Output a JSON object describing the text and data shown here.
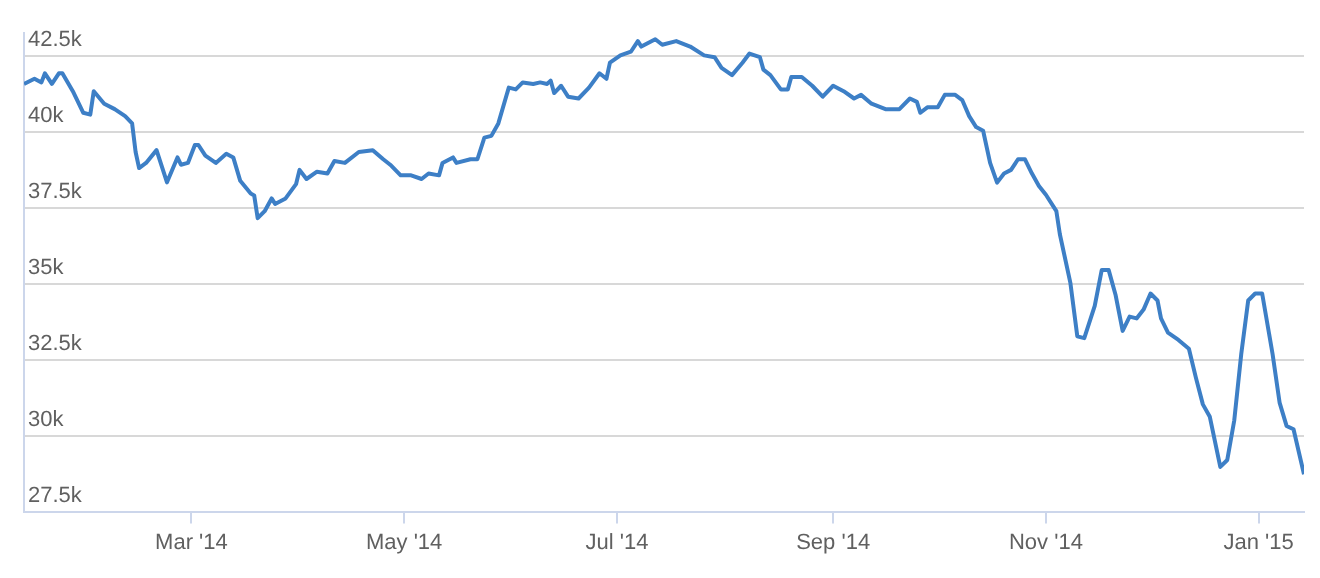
{
  "chart_data": {
    "type": "line",
    "x": [
      "2014-01-12",
      "2014-01-15",
      "2014-01-17",
      "2014-01-18",
      "2014-01-20",
      "2014-01-22",
      "2014-01-23",
      "2014-01-26",
      "2014-01-29",
      "2014-01-31",
      "2014-02-01",
      "2014-02-04",
      "2014-02-07",
      "2014-02-10",
      "2014-02-12",
      "2014-02-13",
      "2014-02-14",
      "2014-02-16",
      "2014-02-19",
      "2014-02-22",
      "2014-02-25",
      "2014-02-26",
      "2014-02-28",
      "2014-03-02",
      "2014-03-03",
      "2014-03-05",
      "2014-03-08",
      "2014-03-11",
      "2014-03-13",
      "2014-03-15",
      "2014-03-18",
      "2014-03-19",
      "2014-03-20",
      "2014-03-22",
      "2014-03-24",
      "2014-03-25",
      "2014-03-28",
      "2014-03-31",
      "2014-04-01",
      "2014-04-03",
      "2014-04-06",
      "2014-04-09",
      "2014-04-11",
      "2014-04-14",
      "2014-04-18",
      "2014-04-22",
      "2014-04-25",
      "2014-04-27",
      "2014-04-30",
      "2014-05-03",
      "2014-05-06",
      "2014-05-08",
      "2014-05-11",
      "2014-05-12",
      "2014-05-15",
      "2014-05-16",
      "2014-05-20",
      "2014-05-22",
      "2014-05-24",
      "2014-05-26",
      "2014-05-28",
      "2014-05-31",
      "2014-06-02",
      "2014-06-04",
      "2014-06-07",
      "2014-06-09",
      "2014-06-11",
      "2014-06-12",
      "2014-06-13",
      "2014-06-15",
      "2014-06-17",
      "2014-06-20",
      "2014-06-23",
      "2014-06-26",
      "2014-06-28",
      "2014-06-29",
      "2014-07-02",
      "2014-07-05",
      "2014-07-07",
      "2014-07-08",
      "2014-07-12",
      "2014-07-14",
      "2014-07-18",
      "2014-07-22",
      "2014-07-26",
      "2014-07-29",
      "2014-07-31",
      "2014-08-03",
      "2014-08-06",
      "2014-08-08",
      "2014-08-11",
      "2014-08-12",
      "2014-08-14",
      "2014-08-17",
      "2014-08-19",
      "2014-08-20",
      "2014-08-23",
      "2014-08-26",
      "2014-08-29",
      "2014-09-01",
      "2014-09-04",
      "2014-09-07",
      "2014-09-09",
      "2014-09-12",
      "2014-09-16",
      "2014-09-18",
      "2014-09-20",
      "2014-09-23",
      "2014-09-25",
      "2014-09-26",
      "2014-09-28",
      "2014-10-01",
      "2014-10-03",
      "2014-10-06",
      "2014-10-08",
      "2014-10-10",
      "2014-10-12",
      "2014-10-14",
      "2014-10-16",
      "2014-10-18",
      "2014-10-20",
      "2014-10-22",
      "2014-10-24",
      "2014-10-26",
      "2014-10-28",
      "2014-10-30",
      "2014-11-01",
      "2014-11-04",
      "2014-11-05",
      "2014-11-08",
      "2014-11-10",
      "2014-11-12",
      "2014-11-15",
      "2014-11-17",
      "2014-11-19",
      "2014-11-21",
      "2014-11-23",
      "2014-11-25",
      "2014-11-27",
      "2014-11-29",
      "2014-12-01",
      "2014-12-03",
      "2014-12-04",
      "2014-12-06",
      "2014-12-09",
      "2014-12-12",
      "2014-12-14",
      "2014-12-16",
      "2014-12-18",
      "2014-12-21",
      "2014-12-23",
      "2014-12-25",
      "2014-12-27",
      "2014-12-29",
      "2014-12-31",
      "2015-01-02",
      "2015-01-05",
      "2015-01-07",
      "2015-01-09",
      "2015-01-11",
      "2015-01-14"
    ],
    "series": [
      {
        "color": "#3d7fc6",
        "values": [
          41580,
          41750,
          41630,
          41930,
          41580,
          41930,
          41930,
          41340,
          40630,
          40570,
          41340,
          40930,
          40750,
          40520,
          40280,
          39340,
          38810,
          38980,
          39400,
          38340,
          39160,
          38920,
          38980,
          39570,
          39570,
          39220,
          38980,
          39280,
          39160,
          38390,
          37970,
          37910,
          37160,
          37390,
          37810,
          37630,
          37810,
          38280,
          38750,
          38450,
          38690,
          38630,
          39040,
          38980,
          39340,
          39400,
          39100,
          38920,
          38570,
          38570,
          38450,
          38630,
          38570,
          38980,
          39160,
          38980,
          39100,
          39100,
          39810,
          39870,
          40280,
          41460,
          41400,
          41630,
          41580,
          41630,
          41580,
          41690,
          41280,
          41520,
          41160,
          41100,
          41460,
          41930,
          41750,
          42280,
          42520,
          42640,
          42990,
          42810,
          43050,
          42870,
          42990,
          42810,
          42520,
          42460,
          42110,
          41870,
          42280,
          42580,
          42460,
          42050,
          41870,
          41400,
          41400,
          41810,
          41810,
          41520,
          41160,
          41520,
          41340,
          41100,
          41220,
          40930,
          40750,
          40750,
          40750,
          41100,
          40990,
          40630,
          40810,
          40810,
          41220,
          41220,
          41050,
          40520,
          40160,
          40040,
          38980,
          38330,
          38630,
          38750,
          39100,
          39100,
          38630,
          38220,
          37930,
          37390,
          36630,
          35040,
          33270,
          33210,
          34270,
          35450,
          35450,
          34620,
          33450,
          33920,
          33860,
          34150,
          34680,
          34450,
          33860,
          33390,
          33150,
          32860,
          31910,
          31030,
          30620,
          28970,
          29200,
          30500,
          32680,
          34450,
          34680,
          34680,
          32680,
          31090,
          30320,
          30210,
          28730
        ]
      }
    ],
    "xlim": [
      "2014-01-12",
      "2015-01-14"
    ],
    "xticks": [
      {
        "value": "2014-03-01",
        "label": "Mar '14"
      },
      {
        "value": "2014-05-01",
        "label": "May '14"
      },
      {
        "value": "2014-07-01",
        "label": "Jul '14"
      },
      {
        "value": "2014-09-01",
        "label": "Sep '14"
      },
      {
        "value": "2014-11-01",
        "label": "Nov '14"
      },
      {
        "value": "2015-01-01",
        "label": "Jan '15"
      }
    ],
    "ylim": [
      27500,
      43250
    ],
    "yticks": [
      {
        "value": 27500,
        "label": "27.5k"
      },
      {
        "value": 30000,
        "label": "30k"
      },
      {
        "value": 32500,
        "label": "32.5k"
      },
      {
        "value": 35000,
        "label": "35k"
      },
      {
        "value": 37500,
        "label": "37.5k"
      },
      {
        "value": 40000,
        "label": "40k"
      },
      {
        "value": 42500,
        "label": "42.5k"
      }
    ],
    "grid": "y",
    "marker": "none"
  }
}
